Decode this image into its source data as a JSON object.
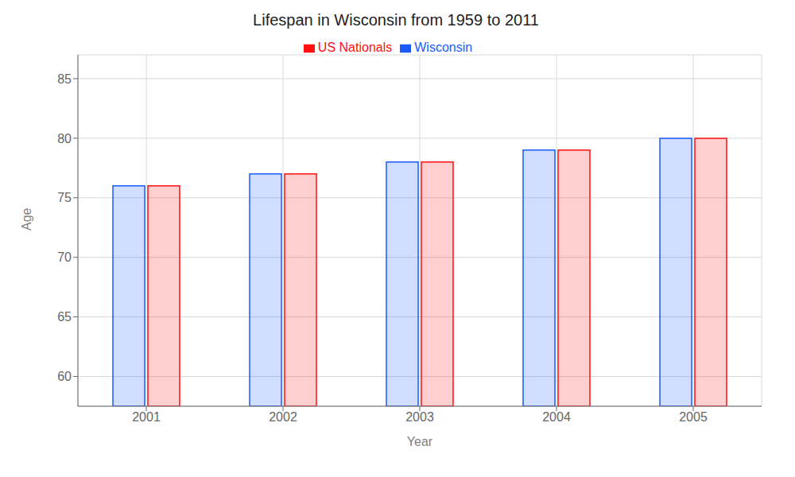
{
  "chart_data": {
    "type": "bar",
    "title": "Lifespan in Wisconsin from 1959 to 2011",
    "xlabel": "Year",
    "ylabel": "Age",
    "categories": [
      "2001",
      "2002",
      "2003",
      "2004",
      "2005"
    ],
    "series": [
      {
        "name": "Wisconsin",
        "color": "#1a5aff",
        "values": [
          76.0,
          77.0,
          78.0,
          79.0,
          80.0
        ]
      },
      {
        "name": "US Nationals",
        "color": "#ff1111",
        "values": [
          76.0,
          77.0,
          78.0,
          79.0,
          80.0
        ]
      }
    ],
    "ylim": [
      57.5,
      87
    ],
    "yticks": [
      60,
      65,
      70,
      75,
      80,
      85
    ],
    "grid": true,
    "legend": "top"
  }
}
